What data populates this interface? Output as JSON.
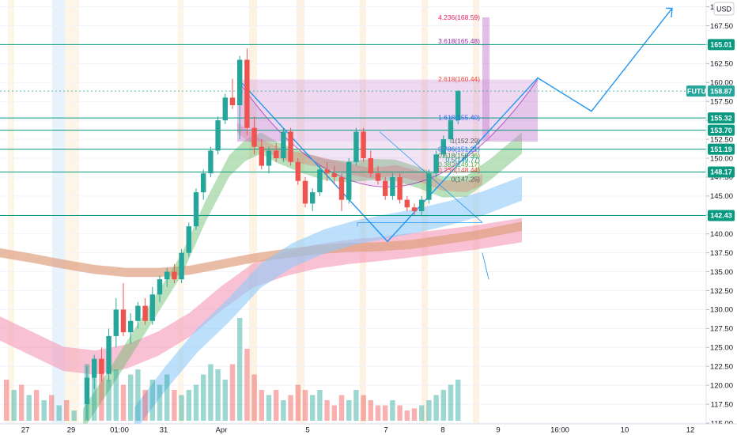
{
  "header": {
    "currency": "USD"
  },
  "chart_data": {
    "type": "candlestick",
    "symbol": "FUTU",
    "current_price": "158.87",
    "y_axis": {
      "range": [
        115,
        171
      ],
      "ticks": [
        "170.00",
        "167.50",
        "165.00",
        "162.50",
        "160.00",
        "157.50",
        "155.00",
        "152.50",
        "150.00",
        "147.50",
        "145.00",
        "142.50",
        "140.00",
        "137.50",
        "135.00",
        "132.50",
        "130.00",
        "127.50",
        "125.00",
        "122.50",
        "120.00",
        "117.50",
        "115.00"
      ]
    },
    "x_axis": {
      "ticks": [
        "27",
        "29",
        "01:00",
        "31",
        "Apr",
        "5",
        "7",
        "8",
        "9",
        "16:00",
        "10",
        "12"
      ]
    },
    "horizontal_levels": [
      {
        "value": 165.01,
        "label": "165.01"
      },
      {
        "value": 155.32,
        "label": "155.32"
      },
      {
        "value": 153.7,
        "label": "153.70"
      },
      {
        "value": 151.19,
        "label": "151.19"
      },
      {
        "value": 148.17,
        "label": "148.17"
      },
      {
        "value": 142.43,
        "label": "142.43"
      }
    ],
    "fib_levels": [
      {
        "label": "4.236(168.59)",
        "value": 168.59,
        "color": "#e91e63"
      },
      {
        "label": "3.618(165.48)",
        "value": 165.48,
        "color": "#9c27b0"
      },
      {
        "label": "2.618(160.44)",
        "value": 160.44,
        "color": "#f44336"
      },
      {
        "label": "1.618(155.40)",
        "value": 155.4,
        "color": "#2962ff"
      },
      {
        "label": "1(152.29)",
        "value": 152.29,
        "color": "#555555"
      },
      {
        "label": "0.786(151.21)",
        "value": 151.21,
        "color": "#2962ff"
      },
      {
        "label": "0.618(150.36)",
        "value": 150.36,
        "color": "#388e3c"
      },
      {
        "label": "0.5(149.77)",
        "value": 149.77,
        "color": "#009688"
      },
      {
        "label": "0.382(149.17)",
        "value": 149.17,
        "color": "#4caf50"
      },
      {
        "label": "0.236(148.44)",
        "value": 148.44,
        "color": "#f44336"
      },
      {
        "label": "0(147.25)",
        "value": 147.25,
        "color": "#555555"
      }
    ],
    "candles": [
      {
        "o": 117.5,
        "h": 122.5,
        "l": 115.5,
        "c": 121.0
      },
      {
        "o": 121.0,
        "h": 124.0,
        "l": 119.5,
        "c": 123.5
      },
      {
        "o": 123.5,
        "h": 125.0,
        "l": 120.5,
        "c": 121.5
      },
      {
        "o": 121.5,
        "h": 127.5,
        "l": 120.5,
        "c": 126.5
      },
      {
        "o": 126.5,
        "h": 131.5,
        "l": 125.0,
        "c": 130.0
      },
      {
        "o": 130.0,
        "h": 133.5,
        "l": 126.5,
        "c": 127.0
      },
      {
        "o": 127.0,
        "h": 129.5,
        "l": 125.5,
        "c": 128.5
      },
      {
        "o": 128.5,
        "h": 131.0,
        "l": 127.5,
        "c": 130.5
      },
      {
        "o": 130.5,
        "h": 131.5,
        "l": 128.0,
        "c": 128.5
      },
      {
        "o": 128.5,
        "h": 133.0,
        "l": 128.0,
        "c": 132.0
      },
      {
        "o": 132.0,
        "h": 134.5,
        "l": 131.0,
        "c": 134.0
      },
      {
        "o": 134.0,
        "h": 135.5,
        "l": 133.0,
        "c": 135.0
      },
      {
        "o": 135.0,
        "h": 136.0,
        "l": 133.5,
        "c": 134.0
      },
      {
        "o": 134.0,
        "h": 138.0,
        "l": 133.5,
        "c": 137.5
      },
      {
        "o": 137.5,
        "h": 141.5,
        "l": 137.0,
        "c": 141.0
      },
      {
        "o": 141.0,
        "h": 146.0,
        "l": 140.5,
        "c": 145.5
      },
      {
        "o": 145.5,
        "h": 148.5,
        "l": 144.5,
        "c": 148.0
      },
      {
        "o": 148.0,
        "h": 151.5,
        "l": 147.5,
        "c": 151.0
      },
      {
        "o": 151.0,
        "h": 155.5,
        "l": 150.5,
        "c": 155.0
      },
      {
        "o": 155.0,
        "h": 158.5,
        "l": 154.5,
        "c": 158.0
      },
      {
        "o": 158.0,
        "h": 160.5,
        "l": 156.5,
        "c": 157.0
      },
      {
        "o": 157.0,
        "h": 163.5,
        "l": 152.5,
        "c": 163.0
      },
      {
        "o": 163.0,
        "h": 164.5,
        "l": 153.0,
        "c": 154.0
      },
      {
        "o": 154.0,
        "h": 155.5,
        "l": 150.5,
        "c": 151.5
      },
      {
        "o": 151.5,
        "h": 152.5,
        "l": 148.5,
        "c": 149.0
      },
      {
        "o": 149.0,
        "h": 151.5,
        "l": 148.0,
        "c": 151.0
      },
      {
        "o": 151.0,
        "h": 152.0,
        "l": 149.5,
        "c": 150.0
      },
      {
        "o": 150.0,
        "h": 154.0,
        "l": 149.5,
        "c": 153.5
      },
      {
        "o": 153.5,
        "h": 154.0,
        "l": 149.0,
        "c": 149.5
      },
      {
        "o": 149.5,
        "h": 150.0,
        "l": 146.5,
        "c": 147.0
      },
      {
        "o": 147.0,
        "h": 147.5,
        "l": 143.5,
        "c": 144.0
      },
      {
        "o": 144.0,
        "h": 146.0,
        "l": 143.0,
        "c": 145.5
      },
      {
        "o": 145.5,
        "h": 149.0,
        "l": 145.0,
        "c": 148.5
      },
      {
        "o": 148.5,
        "h": 149.5,
        "l": 147.0,
        "c": 148.0
      },
      {
        "o": 148.0,
        "h": 149.0,
        "l": 146.5,
        "c": 147.5
      },
      {
        "o": 147.5,
        "h": 148.0,
        "l": 143.0,
        "c": 144.5
      },
      {
        "o": 144.5,
        "h": 150.0,
        "l": 144.0,
        "c": 149.5
      },
      {
        "o": 149.5,
        "h": 154.0,
        "l": 149.0,
        "c": 153.5
      },
      {
        "o": 153.5,
        "h": 154.0,
        "l": 149.5,
        "c": 150.0
      },
      {
        "o": 150.0,
        "h": 151.0,
        "l": 147.5,
        "c": 148.0
      },
      {
        "o": 148.0,
        "h": 149.0,
        "l": 146.5,
        "c": 147.0
      },
      {
        "o": 147.0,
        "h": 147.5,
        "l": 144.5,
        "c": 145.0
      },
      {
        "o": 145.0,
        "h": 148.0,
        "l": 144.5,
        "c": 147.5
      },
      {
        "o": 147.5,
        "h": 148.0,
        "l": 144.0,
        "c": 144.5
      },
      {
        "o": 144.5,
        "h": 145.0,
        "l": 143.0,
        "c": 143.5
      },
      {
        "o": 143.5,
        "h": 144.0,
        "l": 142.5,
        "c": 143.0
      },
      {
        "o": 143.0,
        "h": 145.0,
        "l": 142.5,
        "c": 144.5
      },
      {
        "o": 144.5,
        "h": 148.5,
        "l": 144.0,
        "c": 148.0
      },
      {
        "o": 148.0,
        "h": 151.0,
        "l": 147.5,
        "c": 150.5
      },
      {
        "o": 150.5,
        "h": 153.0,
        "l": 150.0,
        "c": 152.5
      },
      {
        "o": 152.5,
        "h": 155.5,
        "l": 152.0,
        "c": 155.0
      },
      {
        "o": 155.0,
        "h": 159.0,
        "l": 154.5,
        "c": 158.87
      }
    ],
    "volumes": [
      0.55,
      0.45,
      0.6,
      0.4,
      0.5,
      0.35,
      0.45,
      0.5,
      0.3,
      0.4,
      0.35,
      0.45,
      0.3,
      0.25,
      0.3,
      0.35,
      0.45,
      0.55,
      0.5,
      0.4,
      0.55,
      1.0,
      0.7,
      0.45,
      0.3,
      0.25,
      0.3,
      0.2,
      0.25,
      0.35,
      0.3,
      0.25,
      0.3,
      0.2,
      0.15,
      0.25,
      0.2,
      0.3,
      0.25,
      0.2,
      0.15,
      0.15,
      0.2,
      0.15,
      0.1,
      0.12,
      0.15,
      0.2,
      0.25,
      0.3,
      0.35,
      0.4
    ]
  }
}
